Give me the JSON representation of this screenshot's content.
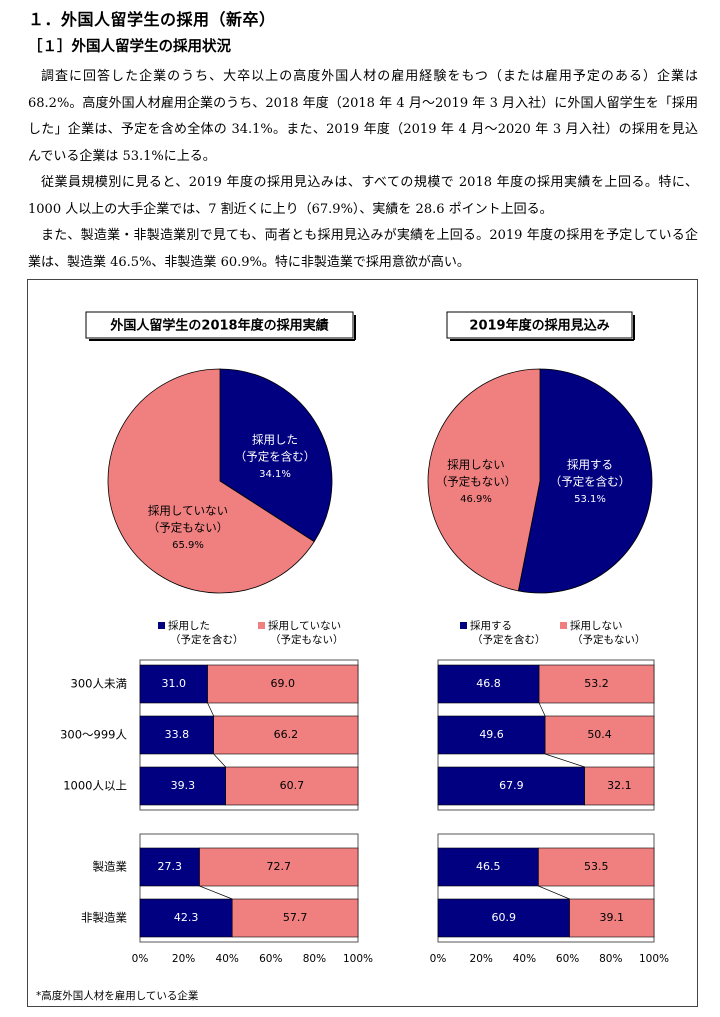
{
  "heading": "１．外国人留学生の採用（新卒）",
  "subheading": "［１］外国人留学生の採用状況",
  "paragraphs": [
    "調査に回答した企業のうち、大卒以上の高度外国人材の雇用経験をもつ（または雇用予定のある）企業は 68.2%。高度外国人材雇用企業のうち、2018 年度（2018 年 4 月～2019 年 3 月入社）に外国人留学生を「採用した」企業は、予定を含め全体の 34.1%。また、2019 年度（2019 年 4 月～2020 年 3 月入社）の採用を見込んでいる企業は 53.1%に上る。",
    "従業員規模別に見ると、2019 年度の採用見込みは、すべての規模で 2018 年度の採用実績を上回る。特に、1000 人以上の大手企業では、7 割近くに上り（67.9%）、実績を 28.6 ポイント上回る。",
    "また、製造業・非製造業別で見ても、両者とも採用見込みが実績を上回る。2019 年度の採用を予定している企業は、製造業 46.5%、非製造業 60.9%。特に非製造業で採用意欲が高い。"
  ],
  "colors": {
    "navy": "#000080",
    "salmon": "#f08080"
  },
  "footnote": "*高度外国人材を雇用している企業",
  "chart_data": [
    {
      "type": "pie",
      "title": "外国人留学生の2018年度の採用実績",
      "slices": [
        {
          "label": [
            "採用した",
            "（予定を含む）"
          ],
          "value": 34.1,
          "value_label": "34.1%",
          "color": "#000080"
        },
        {
          "label": [
            "採用していない",
            "（予定もない）"
          ],
          "value": 65.9,
          "value_label": "65.9%",
          "color": "#f08080"
        }
      ]
    },
    {
      "type": "pie",
      "title": "2019年度の採用見込み",
      "slices": [
        {
          "label": [
            "採用する",
            "（予定を含む）"
          ],
          "value": 53.1,
          "value_label": "53.1%",
          "color": "#000080"
        },
        {
          "label": [
            "採用しない",
            "（予定もない）"
          ],
          "value": 46.9,
          "value_label": "46.9%",
          "color": "#f08080"
        }
      ]
    },
    {
      "type": "bar",
      "orientation": "horizontal",
      "stacked": true,
      "legend": [
        {
          "label": [
            "採用した",
            "（予定を含む）"
          ],
          "color": "#000080"
        },
        {
          "label": [
            "採用していない",
            "（予定もない）"
          ],
          "color": "#f08080"
        }
      ],
      "groups": [
        {
          "categories": [
            "300人未満",
            "300～999人",
            "1000人以上"
          ],
          "series": [
            {
              "values": [
                31.0,
                33.8,
                39.3
              ]
            },
            {
              "values": [
                69.0,
                66.2,
                60.7
              ]
            }
          ]
        },
        {
          "categories": [
            "製造業",
            "非製造業"
          ],
          "series": [
            {
              "values": [
                27.3,
                42.3
              ]
            },
            {
              "values": [
                72.7,
                57.7
              ]
            }
          ]
        }
      ],
      "xticks": [
        "0%",
        "20%",
        "40%",
        "60%",
        "80%",
        "100%"
      ],
      "xlim": [
        0,
        100
      ]
    },
    {
      "type": "bar",
      "orientation": "horizontal",
      "stacked": true,
      "legend": [
        {
          "label": [
            "採用する",
            "（予定を含む）"
          ],
          "color": "#000080"
        },
        {
          "label": [
            "採用しない",
            "（予定もない）"
          ],
          "color": "#f08080"
        }
      ],
      "groups": [
        {
          "series": [
            {
              "values": [
                46.8,
                49.6,
                67.9
              ]
            },
            {
              "values": [
                53.2,
                50.4,
                32.1
              ]
            }
          ]
        },
        {
          "series": [
            {
              "values": [
                46.5,
                60.9
              ]
            },
            {
              "values": [
                53.5,
                39.1
              ]
            }
          ]
        }
      ],
      "xticks": [
        "0%",
        "20%",
        "40%",
        "60%",
        "80%",
        "100%"
      ],
      "xlim": [
        0,
        100
      ]
    }
  ]
}
